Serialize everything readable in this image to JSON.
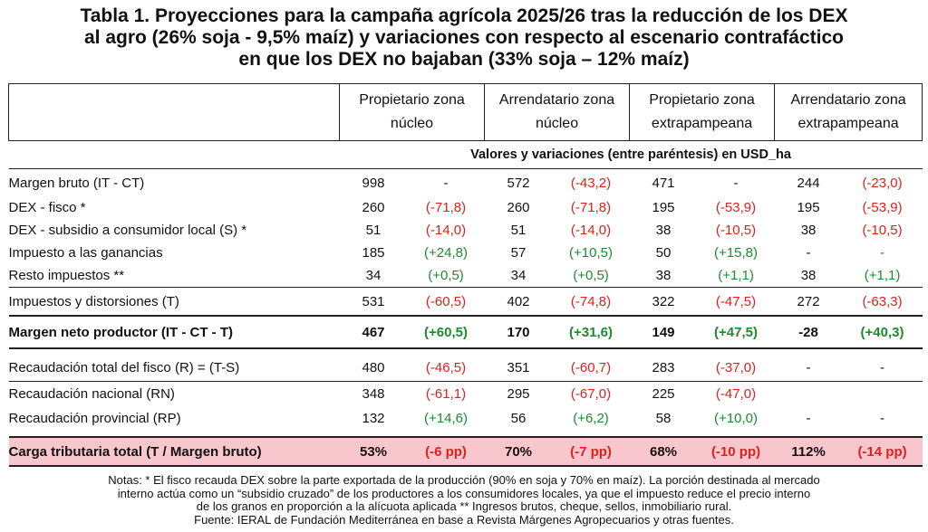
{
  "title": {
    "line1": "Tabla 1. Proyecciones para la campaña agrícola 2025/26 tras la reducción de los DEX",
    "line2": "al agro (26% soja - 9,5% maíz) y variaciones con respecto al escenario contrafáctico",
    "line3": "en que los DEX no bajaban (33% soja – 12% maíz)"
  },
  "columns": [
    {
      "line1": "Propietario zona",
      "line2": "núcleo"
    },
    {
      "line1": "Arrendatario zona",
      "line2": "núcleo"
    },
    {
      "line1": "Propietario zona",
      "line2": "extrapampeana"
    },
    {
      "line1": "Arrendatario zona",
      "line2": "extrapampeana"
    }
  ],
  "units": "Valores y variaciones (entre paréntesis) en USD_ha",
  "rows": {
    "margen_bruto": {
      "label": "Margen bruto (IT - CT)",
      "cells": [
        "998",
        "-",
        "572",
        "(-43,2)",
        "471",
        "-",
        "244",
        "(-23,0)"
      ]
    },
    "dex_fisco": {
      "label": "DEX - fisco *",
      "cells": [
        "260",
        "(-71,8)",
        "260",
        "(-71,8)",
        "195",
        "(-53,9)",
        "195",
        "(-53,9)"
      ]
    },
    "dex_subsidio": {
      "label": "DEX - subsidio a consumidor local (S) *",
      "cells": [
        "51",
        "(-14,0)",
        "51",
        "(-14,0)",
        "38",
        "(-10,5)",
        "38",
        "(-10,5)"
      ]
    },
    "ganancias": {
      "label": "Impuesto a las ganancias",
      "cells": [
        "185",
        "(+24,8)",
        "57",
        "(+10,5)",
        "50",
        "(+15,8)",
        "-",
        "-"
      ]
    },
    "resto": {
      "label": "Resto impuestos **",
      "cells": [
        "34",
        "(+0,5)",
        "34",
        "(+0,5)",
        "38",
        "(+1,1)",
        "38",
        "(+1,1)"
      ]
    },
    "impuestos": {
      "label": "Impuestos y distorsiones (T)",
      "cells": [
        "531",
        "(-60,5)",
        "402",
        "(-74,8)",
        "322",
        "(-47,5)",
        "272",
        "(-63,3)"
      ]
    },
    "margen_neto": {
      "label": "Margen neto productor (IT - CT - T)",
      "cells": [
        "467",
        "(+60,5)",
        "170",
        "(+31,6)",
        "149",
        "(+47,5)",
        "-28",
        "(+40,3)"
      ]
    },
    "recaudacion_total": {
      "label": "Recaudación total del fisco (R) = (T-S)",
      "cells": [
        "480",
        "(-46,5)",
        "351",
        "(-60,7)",
        "283",
        "(-37,0)",
        "-",
        "-"
      ]
    },
    "recaudacion_nacional": {
      "label": "Recaudación nacional (RN)",
      "cells": [
        "348",
        "(-61,1)",
        "295",
        "(-67,0)",
        "225",
        "(-47,0)",
        "",
        ""
      ]
    },
    "recaudacion_provincial": {
      "label": "Recaudación provincial (RP)",
      "cells": [
        "132",
        "(+14,6)",
        "56",
        "(+6,2)",
        "58",
        "(+10,0)",
        "-",
        "-"
      ]
    },
    "carga": {
      "label": "Carga tributaria total (T / Margen bruto)",
      "cells": [
        "53%",
        "(-6 pp)",
        "70%",
        "(-7 pp)",
        "68%",
        "(-10 pp)",
        "112%",
        "(-14 pp)"
      ]
    }
  },
  "colors": {
    "negative": "#e0201b",
    "positive": "#1e8a2e",
    "highlight_row": "#f8c6cd"
  },
  "notes": {
    "line1": "Notas: * El fisco recauda DEX sobre la parte exportada de la producción (90% en soja y 70% en maíz). La porción destinada al mercado",
    "line2": "interno actúa como un “subsidio cruzado” de los productores a los consumidores locales, ya que el impuesto reduce el precio interno",
    "line3": "de los granos en proporción a la alícuota aplicada ** Ingresos brutos, cheque, sellos, inmobiliario rural.",
    "line4": "Fuente: IERAL de Fundación Mediterránea en base a Revista Márgenes Agropecuarios y otras fuentes."
  }
}
